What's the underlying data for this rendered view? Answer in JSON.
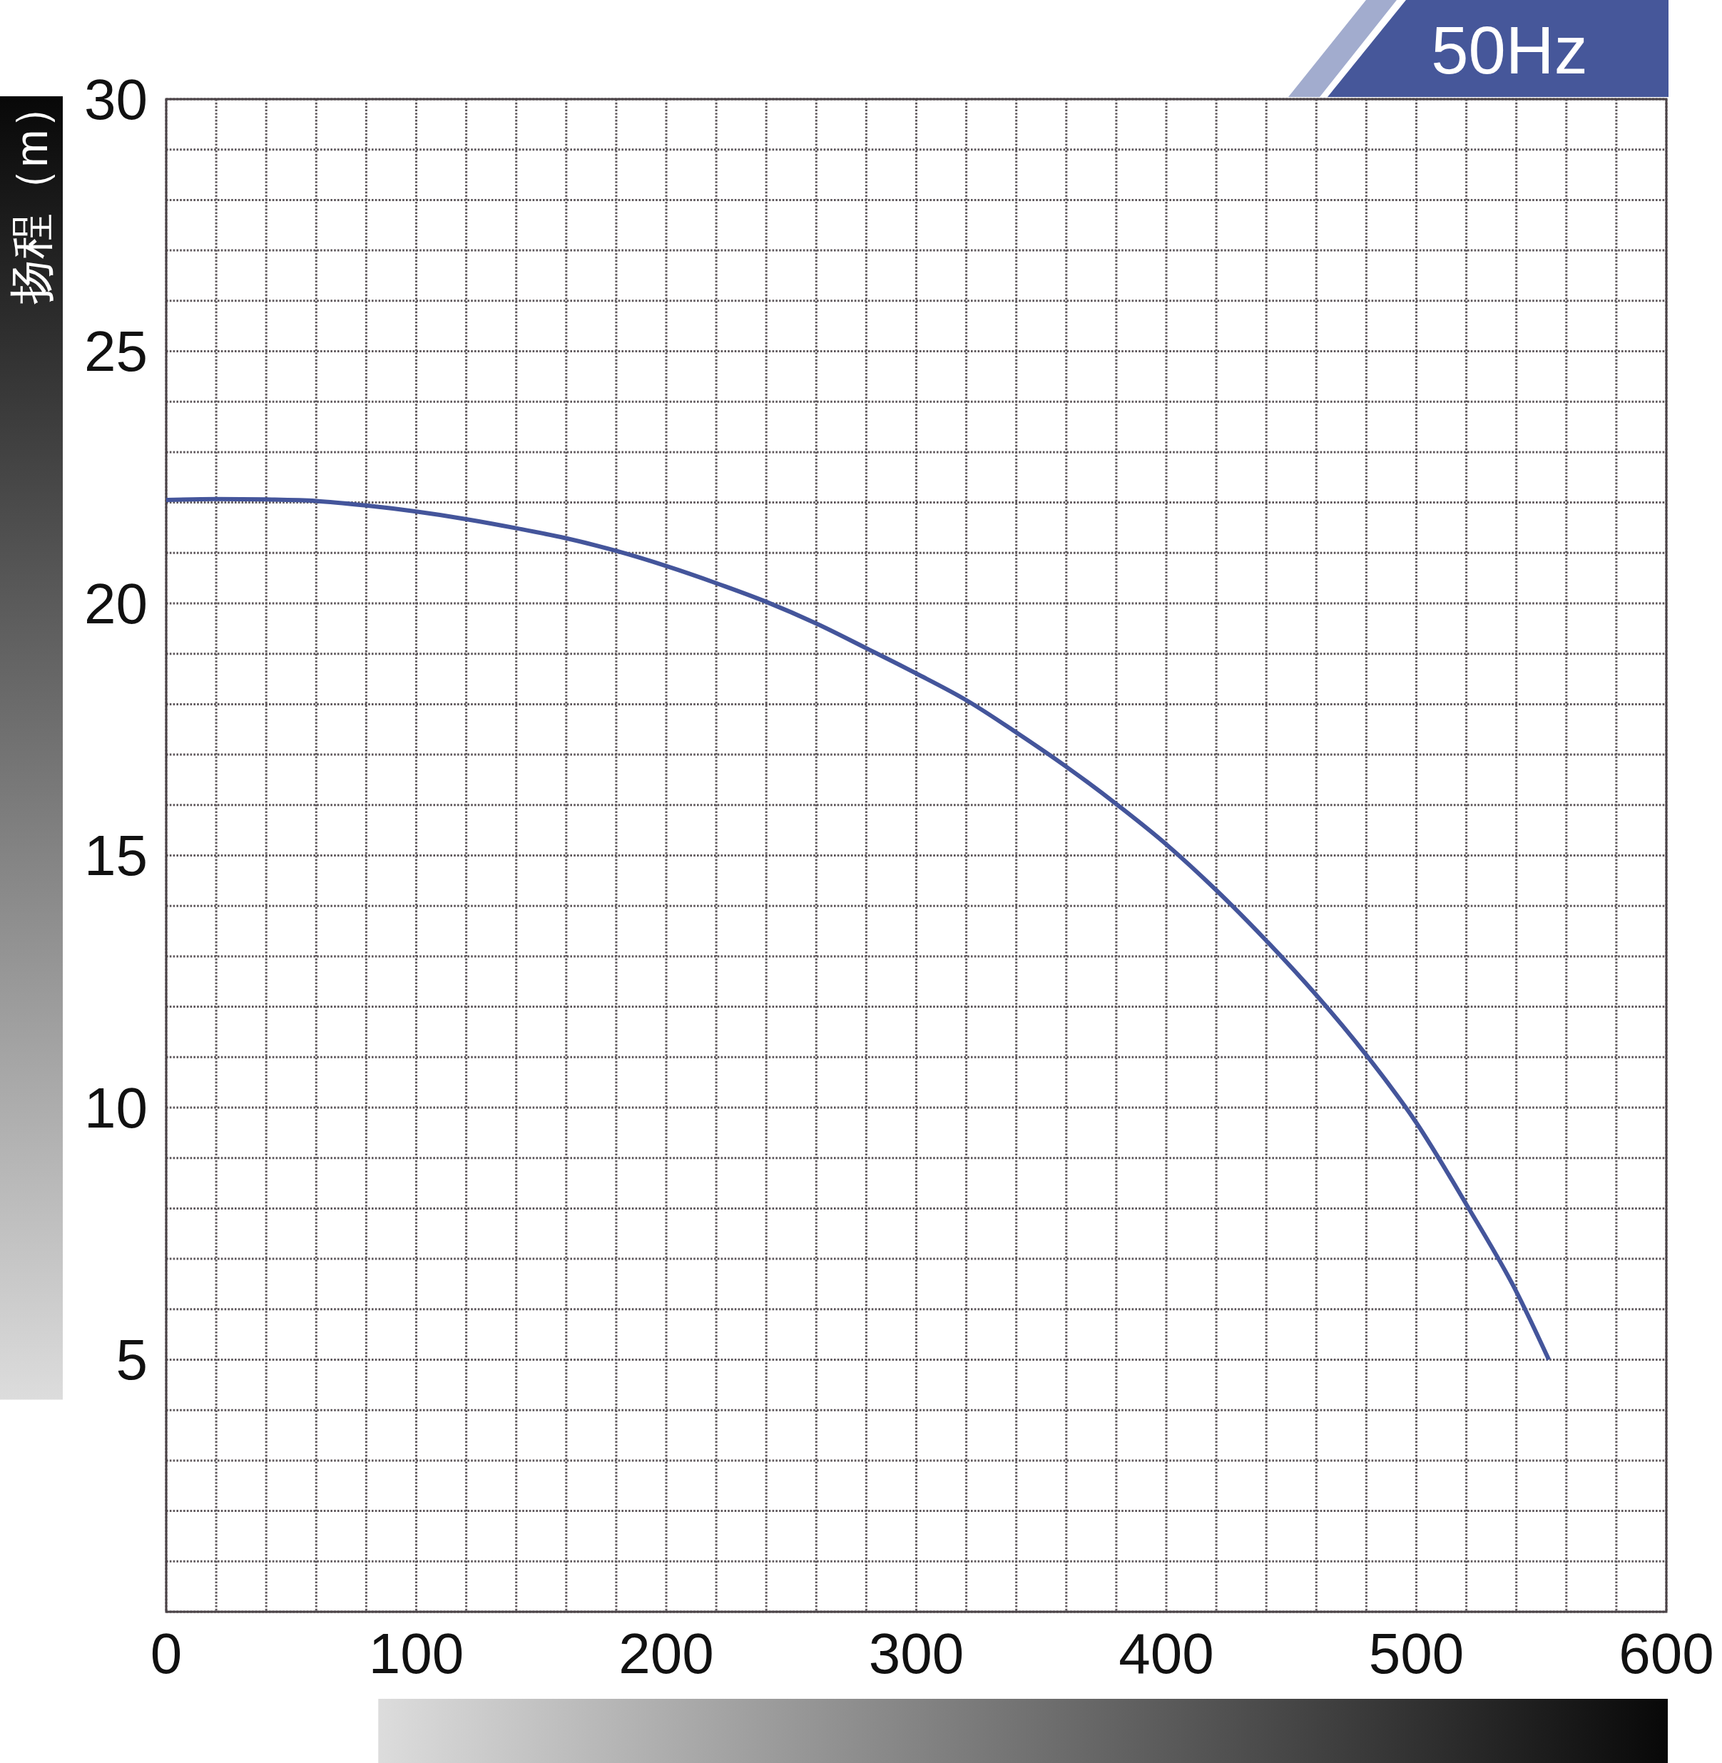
{
  "chart_data": {
    "type": "line",
    "title": "50Hz",
    "ylabel": "扬程（m）",
    "x": [
      0,
      20,
      40,
      60,
      80,
      100,
      120,
      140,
      160,
      180,
      200,
      220,
      240,
      260,
      280,
      300,
      320,
      340,
      360,
      380,
      400,
      420,
      440,
      460,
      480,
      500,
      520,
      540,
      553
    ],
    "series": [
      {
        "color": "#44559b",
        "values": [
          22.05,
          22.07,
          22.06,
          22.03,
          21.94,
          21.82,
          21.67,
          21.49,
          21.29,
          21.04,
          20.74,
          20.4,
          20.03,
          19.6,
          19.11,
          18.61,
          18.08,
          17.44,
          16.76,
          16.02,
          15.22,
          14.31,
          13.31,
          12.23,
          11.04,
          9.7,
          8.08,
          6.35,
          5.0
        ]
      }
    ],
    "xlim": [
      0,
      600
    ],
    "ylim": [
      0,
      30
    ],
    "xticks": [
      0,
      {
        "value": 20,
        "label": null
      },
      {
        "value": 40,
        "label": null
      },
      {
        "value": 60,
        "label": null
      },
      {
        "value": 80,
        "label": null
      },
      100,
      {
        "value": 120,
        "label": null
      },
      {
        "value": 140,
        "label": null
      },
      {
        "value": 160,
        "label": null
      },
      {
        "value": 180,
        "label": null
      },
      200,
      {
        "value": 220,
        "label": null
      },
      {
        "value": 240,
        "label": null
      },
      {
        "value": 260,
        "label": null
      },
      {
        "value": 280,
        "label": null
      },
      300,
      {
        "value": 320,
        "label": null
      },
      {
        "value": 340,
        "label": null
      },
      {
        "value": 360,
        "label": null
      },
      {
        "value": 380,
        "label": null
      },
      400,
      {
        "value": 420,
        "label": null
      },
      {
        "value": 440,
        "label": null
      },
      {
        "value": 460,
        "label": null
      },
      {
        "value": 480,
        "label": null
      },
      500,
      {
        "value": 520,
        "label": null
      },
      {
        "value": 540,
        "label": null
      },
      {
        "value": 560,
        "label": null
      },
      {
        "value": 580,
        "label": null
      },
      600
    ],
    "yticks": [
      {
        "value": 0,
        "label": null
      },
      {
        "value": 1,
        "label": null
      },
      {
        "value": 2,
        "label": null
      },
      {
        "value": 3,
        "label": null
      },
      {
        "value": 4,
        "label": null
      },
      5,
      {
        "value": 6,
        "label": null
      },
      {
        "value": 7,
        "label": null
      },
      {
        "value": 8,
        "label": null
      },
      {
        "value": 9,
        "label": null
      },
      10,
      {
        "value": 11,
        "label": null
      },
      {
        "value": 12,
        "label": null
      },
      {
        "value": 13,
        "label": null
      },
      {
        "value": 14,
        "label": null
      },
      15,
      {
        "value": 16,
        "label": null
      },
      {
        "value": 17,
        "label": null
      },
      {
        "value": 18,
        "label": null
      },
      {
        "value": 19,
        "label": null
      },
      20,
      {
        "value": 21,
        "label": null
      },
      {
        "value": 22,
        "label": null
      },
      {
        "value": 23,
        "label": null
      },
      {
        "value": 24,
        "label": null
      },
      25,
      {
        "value": 26,
        "label": null
      },
      {
        "value": 27,
        "label": null
      },
      {
        "value": 28,
        "label": null
      },
      {
        "value": 29,
        "label": null
      },
      30
    ],
    "grid": true,
    "line_style": "solid"
  }
}
